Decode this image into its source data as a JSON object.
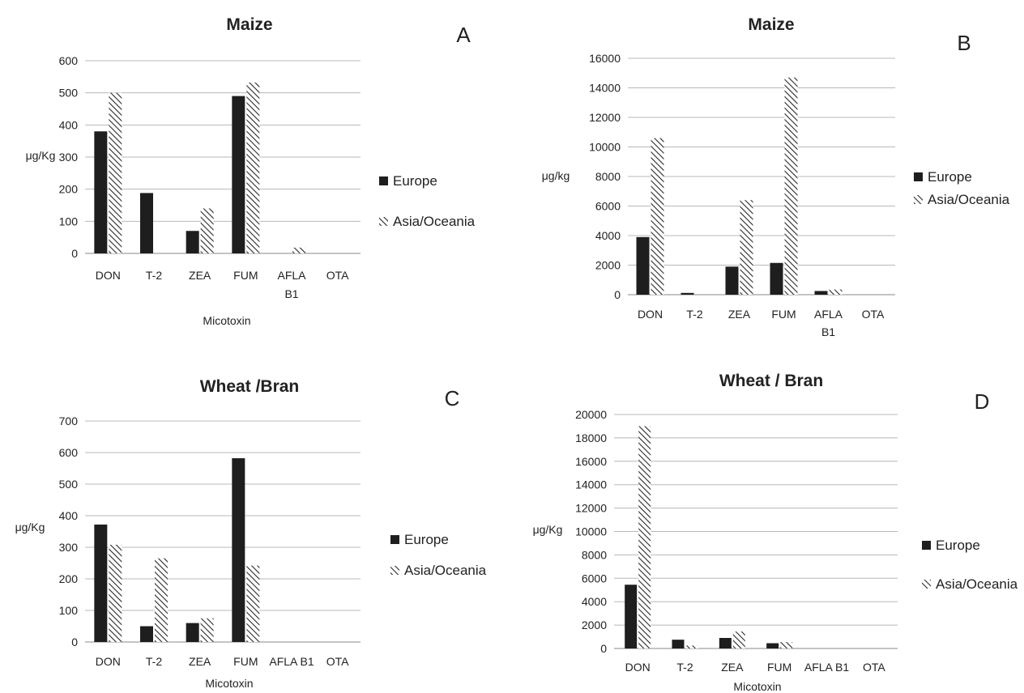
{
  "chart_data": [
    {
      "type": "bar",
      "panel": "A",
      "title": "Maize",
      "xlabel": "Micotoxin",
      "ylabel": "μg/Kg",
      "ylim": [
        0,
        600
      ],
      "yticks": [
        "0",
        "100",
        "200",
        "300",
        "400",
        "500",
        "600"
      ],
      "categories": [
        "DON",
        "T-2",
        "ZEA",
        "FUM",
        "AFLA B1",
        "OTA"
      ],
      "category_lines": [
        [
          "DON"
        ],
        [
          "T-2"
        ],
        [
          "ZEA"
        ],
        [
          "FUM"
        ],
        [
          "AFLA",
          "B1"
        ],
        [
          "OTA"
        ]
      ],
      "series": [
        {
          "name": "Europe",
          "values": [
            380,
            188,
            70,
            490,
            0,
            0
          ]
        },
        {
          "name": "Asia/Oceania",
          "values": [
            500,
            0,
            140,
            532,
            18,
            0
          ]
        }
      ],
      "grid": true,
      "legend_position": "right"
    },
    {
      "type": "bar",
      "panel": "B",
      "title": "Maize",
      "xlabel": "",
      "ylabel": "μg/kg",
      "ylim": [
        0,
        16000
      ],
      "yticks": [
        "0",
        "2000",
        "4000",
        "6000",
        "8000",
        "10000",
        "12000",
        "14000",
        "16000"
      ],
      "categories": [
        "DON",
        "T-2",
        "ZEA",
        "FUM",
        "AFLA B1",
        "OTA"
      ],
      "category_lines": [
        [
          "DON"
        ],
        [
          "T-2"
        ],
        [
          "ZEA"
        ],
        [
          "FUM"
        ],
        [
          "AFLA",
          "B1"
        ],
        [
          "OTA"
        ]
      ],
      "series": [
        {
          "name": "Europe",
          "values": [
            3900,
            120,
            1900,
            2150,
            250,
            0
          ]
        },
        {
          "name": "Asia/Oceania",
          "values": [
            10600,
            0,
            6400,
            14700,
            350,
            0
          ]
        }
      ],
      "grid": true,
      "legend_position": "right"
    },
    {
      "type": "bar",
      "panel": "C",
      "title": "Wheat /Bran",
      "xlabel": "Micotoxin",
      "ylabel": "μg/Kg",
      "ylim": [
        0,
        700
      ],
      "yticks": [
        "0",
        "100",
        "200",
        "300",
        "400",
        "500",
        "600",
        "700"
      ],
      "categories": [
        "DON",
        "T-2",
        "ZEA",
        "FUM",
        "AFLA B1",
        "OTA"
      ],
      "category_lines": [
        [
          "DON"
        ],
        [
          "T-2"
        ],
        [
          "ZEA"
        ],
        [
          "FUM"
        ],
        [
          "AFLA B1"
        ],
        [
          "OTA"
        ]
      ],
      "series": [
        {
          "name": "Europe",
          "values": [
            372,
            50,
            60,
            582,
            0,
            0
          ]
        },
        {
          "name": "Asia/Oceania",
          "values": [
            308,
            265,
            75,
            242,
            0,
            0
          ]
        }
      ],
      "grid": true,
      "legend_position": "right"
    },
    {
      "type": "bar",
      "panel": "D",
      "title": "Wheat / Bran",
      "xlabel": "Micotoxin",
      "ylabel": "μg/Kg",
      "ylim": [
        0,
        20000
      ],
      "yticks": [
        "0",
        "2000",
        "4000",
        "6000",
        "8000",
        "10000",
        "12000",
        "14000",
        "16000",
        "18000",
        "20000"
      ],
      "categories": [
        "DON",
        "T-2",
        "ZEA",
        "FUM",
        "AFLA B1",
        "OTA"
      ],
      "category_lines": [
        [
          "DON"
        ],
        [
          "T-2"
        ],
        [
          "ZEA"
        ],
        [
          "FUM"
        ],
        [
          "AFLA B1"
        ],
        [
          "OTA"
        ]
      ],
      "series": [
        {
          "name": "Europe",
          "values": [
            5450,
            750,
            900,
            450,
            0,
            0
          ]
        },
        {
          "name": "Asia/Oceania",
          "values": [
            19000,
            250,
            1450,
            550,
            0,
            0
          ]
        }
      ],
      "grid": true,
      "legend_position": "right"
    }
  ],
  "colors": {
    "europe": "#1e1e1e",
    "asia_stripe": "#2a2a2a",
    "grid": "#b8b8b8",
    "axis": "#888888"
  }
}
